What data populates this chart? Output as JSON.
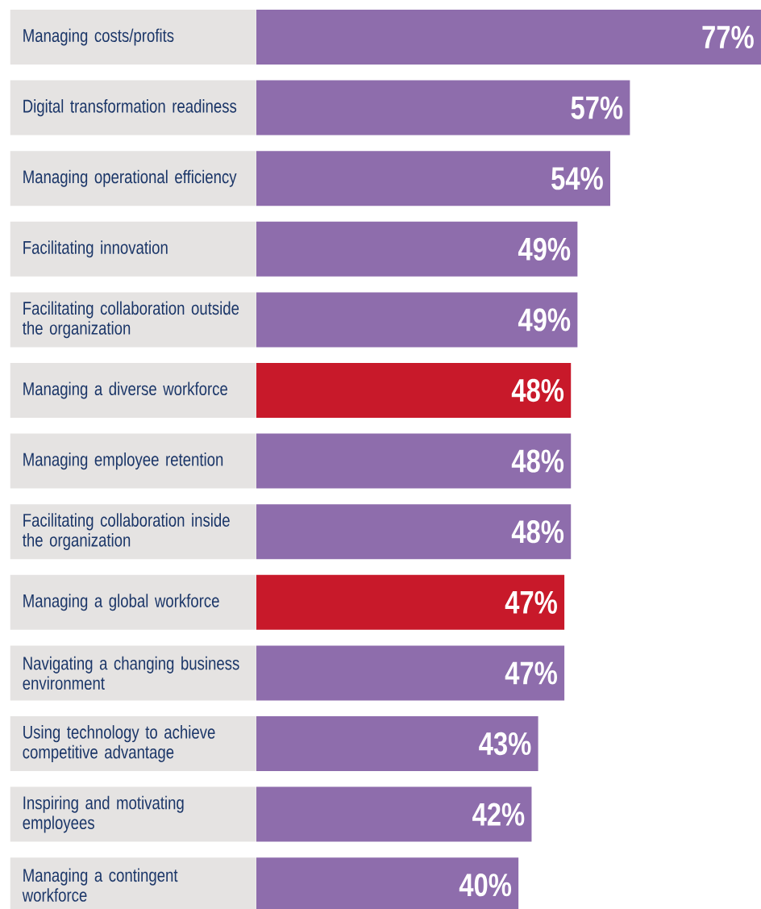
{
  "chart_data": {
    "type": "bar",
    "orientation": "horizontal",
    "categories": [
      "Managing costs/profits",
      "Digital transformation readiness",
      "Managing operational efficiency",
      "Facilitating innovation",
      "Facilitating collaboration outside the organization",
      "Managing a diverse workforce",
      "Managing employee retention",
      "Facilitating collaboration inside the organization",
      "Managing a global workforce",
      "Navigating a changing business environment",
      "Using technology to achieve competitive advantage",
      "Inspiring and motivating employees",
      "Managing a contingent workforce"
    ],
    "values": [
      77,
      57,
      54,
      49,
      49,
      48,
      48,
      48,
      47,
      47,
      43,
      42,
      40
    ],
    "value_labels": [
      "77%",
      "57%",
      "54%",
      "49%",
      "49%",
      "48%",
      "48%",
      "48%",
      "47%",
      "47%",
      "43%",
      "42%",
      "40%"
    ],
    "colors": [
      "#8e6dac",
      "#8e6dac",
      "#8e6dac",
      "#8e6dac",
      "#8e6dac",
      "#c8192a",
      "#8e6dac",
      "#8e6dac",
      "#c8192a",
      "#8e6dac",
      "#8e6dac",
      "#8e6dac",
      "#8e6dac"
    ]
  }
}
